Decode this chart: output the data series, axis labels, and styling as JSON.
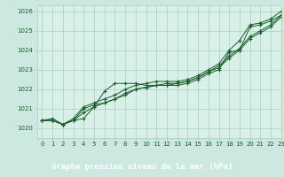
{
  "title": "Graphe pression niveau de la mer (hPa)",
  "background_color": "#cce8e0",
  "plot_bg_color": "#d8f0e8",
  "label_bg_color": "#2d7a4a",
  "grid_color": "#aad0c0",
  "line_color": "#1a5c2a",
  "xlim": [
    -0.5,
    23
  ],
  "ylim": [
    1019.5,
    1026.3
  ],
  "yticks": [
    1020,
    1021,
    1022,
    1023,
    1024,
    1025,
    1026
  ],
  "xticks": [
    0,
    1,
    2,
    3,
    4,
    5,
    6,
    7,
    8,
    9,
    10,
    11,
    12,
    13,
    14,
    15,
    16,
    17,
    18,
    19,
    20,
    21,
    22,
    23
  ],
  "hours": [
    0,
    1,
    2,
    3,
    4,
    5,
    6,
    7,
    8,
    9,
    10,
    11,
    12,
    13,
    14,
    15,
    16,
    17,
    18,
    19,
    20,
    21,
    22,
    23
  ],
  "line1": [
    1020.4,
    1020.4,
    1020.2,
    1020.4,
    1020.5,
    1021.1,
    1021.9,
    1022.3,
    1022.3,
    1022.3,
    1022.2,
    1022.2,
    1022.2,
    1022.2,
    1022.3,
    1022.5,
    1022.8,
    1023.0,
    1023.9,
    1024.0,
    1025.2,
    1025.3,
    1025.5,
    1025.8
  ],
  "line2": [
    1020.4,
    1020.4,
    1020.2,
    1020.4,
    1021.0,
    1021.2,
    1021.3,
    1021.5,
    1021.8,
    1022.0,
    1022.1,
    1022.2,
    1022.3,
    1022.3,
    1022.4,
    1022.6,
    1022.9,
    1023.2,
    1023.7,
    1024.1,
    1024.7,
    1025.0,
    1025.3,
    1025.8
  ],
  "line3": [
    1020.4,
    1020.4,
    1020.2,
    1020.4,
    1020.8,
    1021.1,
    1021.3,
    1021.5,
    1021.7,
    1022.0,
    1022.1,
    1022.2,
    1022.2,
    1022.3,
    1022.4,
    1022.6,
    1022.9,
    1023.1,
    1023.6,
    1024.0,
    1024.6,
    1024.9,
    1025.2,
    1025.7
  ],
  "line4": [
    1020.4,
    1020.5,
    1020.2,
    1020.5,
    1021.1,
    1021.3,
    1021.5,
    1021.7,
    1022.0,
    1022.2,
    1022.3,
    1022.4,
    1022.4,
    1022.4,
    1022.5,
    1022.7,
    1023.0,
    1023.3,
    1024.0,
    1024.5,
    1025.3,
    1025.4,
    1025.6,
    1026.0
  ]
}
